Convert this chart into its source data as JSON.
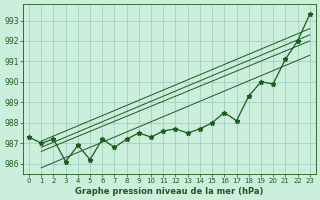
{
  "xlabel": "Graphe pression niveau de la mer (hPa)",
  "background_color": "#cceedd",
  "plot_bg_color": "#cceedd",
  "grid_color": "#99ccbb",
  "line_color": "#1a5c1a",
  "ylim": [
    985.5,
    993.8
  ],
  "xlim": [
    -0.5,
    23.5
  ],
  "yticks": [
    986,
    987,
    988,
    989,
    990,
    991,
    992,
    993
  ],
  "xticks": [
    0,
    1,
    2,
    3,
    4,
    5,
    6,
    7,
    8,
    9,
    10,
    11,
    12,
    13,
    14,
    15,
    16,
    17,
    18,
    19,
    20,
    21,
    22,
    23
  ],
  "pressure_data": [
    987.3,
    987.0,
    987.2,
    986.1,
    986.9,
    986.2,
    987.2,
    986.8,
    987.2,
    987.5,
    987.3,
    987.6,
    987.7,
    987.5,
    987.7,
    988.0,
    988.5,
    988.1,
    989.3,
    990.0,
    989.9,
    991.1,
    992.0,
    993.3
  ],
  "trend_lines": [
    {
      "x": [
        1,
        23
      ],
      "y": [
        986.6,
        992.0
      ]
    },
    {
      "x": [
        1,
        23
      ],
      "y": [
        986.8,
        992.3
      ]
    },
    {
      "x": [
        1,
        23
      ],
      "y": [
        987.1,
        992.6
      ]
    },
    {
      "x": [
        1,
        23
      ],
      "y": [
        985.8,
        991.3
      ]
    }
  ],
  "xtick_fontsize": 5.0,
  "ytick_fontsize": 5.5,
  "xlabel_fontsize": 6.0
}
